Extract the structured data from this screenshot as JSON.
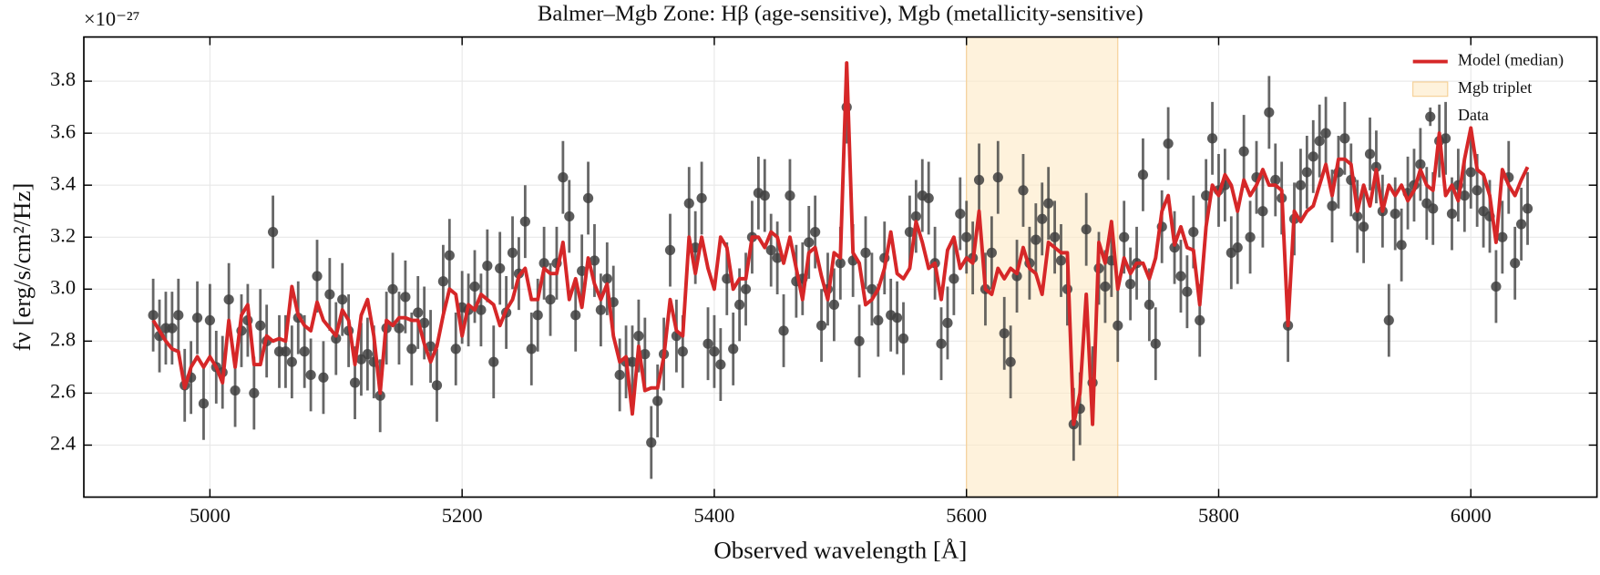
{
  "chart_data": {
    "type": "line",
    "title": "Balmer–Mgb Zone: Hβ (age-sensitive), Mgb (metallicity-sensitive)",
    "xlabel": "Observed wavelength [Å]",
    "ylabel": "fν [erg/s/cm²/Hz]",
    "y_offset_label": "×10⁻²⁷",
    "xlim": [
      4900,
      6100
    ],
    "ylim": [
      2.2,
      3.97
    ],
    "xticks": [
      5000,
      5200,
      5400,
      5600,
      5800,
      6000
    ],
    "yticks": [
      2.4,
      2.6,
      2.8,
      {
        "value": 3,
        "label": "3.0"
      },
      3.2,
      3.4,
      3.6,
      3.8
    ],
    "grid": true,
    "legend": "upper right",
    "spans": [
      {
        "name": "Mgb triplet",
        "x0": 5600,
        "x1": 5720,
        "color": "#fde9c4"
      }
    ],
    "x": [
      4955,
      4960,
      4965,
      4970,
      4975,
      4980,
      4985,
      4990,
      4995,
      5000,
      5005,
      5010,
      5015,
      5020,
      5025,
      5030,
      5035,
      5040,
      5045,
      5050,
      5055,
      5060,
      5065,
      5070,
      5075,
      5080,
      5085,
      5090,
      5095,
      5100,
      5105,
      5110,
      5115,
      5120,
      5125,
      5130,
      5135,
      5140,
      5145,
      5150,
      5155,
      5160,
      5165,
      5170,
      5175,
      5180,
      5185,
      5190,
      5195,
      5200,
      5205,
      5210,
      5215,
      5220,
      5225,
      5230,
      5235,
      5240,
      5245,
      5250,
      5255,
      5260,
      5265,
      5270,
      5275,
      5280,
      5285,
      5290,
      5295,
      5300,
      5305,
      5310,
      5315,
      5320,
      5325,
      5330,
      5335,
      5340,
      5345,
      5350,
      5355,
      5360,
      5365,
      5370,
      5375,
      5380,
      5385,
      5390,
      5395,
      5400,
      5405,
      5410,
      5415,
      5420,
      5425,
      5430,
      5435,
      5440,
      5445,
      5450,
      5455,
      5460,
      5465,
      5470,
      5475,
      5480,
      5485,
      5490,
      5495,
      5500,
      5505,
      5510,
      5515,
      5520,
      5525,
      5530,
      5535,
      5540,
      5545,
      5550,
      5555,
      5560,
      5565,
      5570,
      5575,
      5580,
      5585,
      5590,
      5595,
      5600,
      5605,
      5610,
      5615,
      5620,
      5625,
      5630,
      5635,
      5640,
      5645,
      5650,
      5655,
      5660,
      5665,
      5670,
      5675,
      5680,
      5685,
      5690,
      5695,
      5700,
      5705,
      5710,
      5715,
      5720,
      5725,
      5730,
      5735,
      5740,
      5745,
      5750,
      5755,
      5760,
      5765,
      5770,
      5775,
      5780,
      5785,
      5790,
      5795,
      5800,
      5805,
      5810,
      5815,
      5820,
      5825,
      5830,
      5835,
      5840,
      5845,
      5850,
      5855,
      5860,
      5865,
      5870,
      5875,
      5880,
      5885,
      5890,
      5895,
      5900,
      5905,
      5910,
      5915,
      5920,
      5925,
      5930,
      5935,
      5940,
      5945,
      5950,
      5955,
      5960,
      5965,
      5970,
      5975,
      5980,
      5985,
      5990,
      5995,
      6000,
      6005,
      6010,
      6015,
      6020,
      6025,
      6030,
      6035,
      6040,
      6045
    ],
    "series": [
      {
        "name": "Model (median)",
        "type": "line",
        "color": "#d62728",
        "values": [
          2.88,
          2.84,
          2.8,
          2.77,
          2.76,
          2.62,
          2.7,
          2.74,
          2.7,
          2.74,
          2.7,
          2.64,
          2.88,
          2.7,
          2.9,
          2.94,
          2.71,
          2.71,
          2.82,
          2.8,
          2.81,
          2.8,
          3.01,
          2.9,
          2.86,
          2.84,
          2.95,
          2.88,
          2.85,
          2.82,
          2.92,
          2.88,
          2.71,
          2.9,
          2.96,
          2.82,
          2.6,
          2.88,
          2.86,
          2.89,
          2.89,
          2.88,
          2.88,
          2.79,
          2.72,
          2.78,
          2.9,
          3.0,
          2.98,
          2.82,
          2.94,
          2.92,
          2.98,
          2.96,
          2.94,
          2.86,
          2.92,
          2.96,
          3.05,
          3.08,
          2.96,
          2.96,
          3.08,
          3.06,
          3.06,
          3.18,
          2.96,
          3.04,
          2.93,
          3.12,
          3.02,
          2.96,
          3.02,
          2.82,
          2.72,
          2.74,
          2.52,
          2.78,
          2.61,
          2.62,
          2.62,
          2.74,
          2.96,
          2.84,
          2.82,
          3.2,
          3.06,
          3.2,
          3.08,
          3.0,
          3.2,
          3.16,
          3.0,
          3.04,
          3.04,
          3.2,
          3.2,
          3.16,
          3.22,
          3.2,
          3.1,
          3.2,
          3.08,
          2.96,
          3.14,
          3.16,
          3.05,
          2.96,
          3.14,
          3.12,
          3.87,
          3.14,
          3.1,
          2.94,
          2.96,
          3.0,
          3.08,
          3.22,
          3.06,
          3.04,
          3.08,
          3.26,
          3.18,
          3.08,
          3.1,
          2.96,
          3.15,
          3.2,
          3.08,
          3.12,
          3.1,
          3.3,
          3.0,
          2.98,
          3.08,
          3.04,
          3.08,
          3.06,
          3.16,
          3.08,
          3.06,
          2.98,
          3.18,
          3.16,
          3.14,
          3.14,
          2.48,
          2.6,
          2.98,
          2.48,
          3.18,
          3.1,
          3.26,
          3.0,
          3.12,
          3.06,
          3.1,
          3.1,
          3.04,
          3.12,
          3.3,
          3.36,
          3.17,
          3.24,
          3.16,
          3.15,
          2.94,
          3.24,
          3.4,
          3.36,
          3.44,
          3.4,
          3.3,
          3.42,
          3.36,
          3.4,
          3.46,
          3.4,
          3.4,
          3.38,
          2.86,
          3.3,
          3.26,
          3.3,
          3.32,
          3.4,
          3.48,
          3.36,
          3.5,
          3.5,
          3.48,
          3.3,
          3.4,
          3.32,
          3.46,
          3.3,
          3.4,
          3.36,
          3.4,
          3.34,
          3.38,
          3.46,
          3.4,
          3.38,
          3.6,
          3.36,
          3.4,
          3.34,
          3.5,
          3.62,
          3.46,
          3.44,
          3.36,
          3.18,
          3.46,
          3.4,
          3.36,
          3.42,
          3.47
        ]
      },
      {
        "name": "Data",
        "type": "errorbar",
        "color": "#404040",
        "yerr": 0.14,
        "values": [
          2.9,
          2.82,
          2.85,
          2.85,
          2.9,
          2.63,
          2.66,
          2.89,
          2.56,
          2.88,
          2.7,
          2.68,
          2.96,
          2.61,
          2.84,
          2.88,
          2.6,
          2.86,
          2.8,
          3.22,
          2.76,
          2.76,
          2.72,
          2.89,
          2.76,
          2.67,
          3.05,
          2.66,
          2.98,
          2.81,
          2.96,
          2.84,
          2.64,
          2.73,
          2.75,
          2.72,
          2.59,
          2.85,
          3.0,
          2.85,
          2.97,
          2.77,
          2.91,
          2.87,
          2.78,
          2.63,
          3.03,
          3.13,
          2.77,
          2.93,
          2.92,
          3.01,
          2.92,
          3.09,
          2.72,
          3.08,
          2.91,
          3.14,
          3.06,
          3.26,
          2.77,
          2.9,
          3.1,
          2.96,
          3.1,
          3.43,
          3.28,
          2.9,
          3.07,
          3.35,
          3.11,
          2.92,
          3.04,
          2.95,
          2.67,
          2.72,
          2.72,
          2.82,
          2.75,
          2.41,
          2.57,
          2.75,
          3.15,
          2.82,
          2.76,
          3.33,
          3.16,
          3.35,
          2.79,
          2.76,
          2.71,
          3.04,
          2.77,
          2.94,
          3.0,
          3.2,
          3.37,
          3.36,
          3.15,
          3.12,
          2.84,
          3.36,
          3.03,
          3.04,
          3.18,
          3.22,
          2.86,
          3.0,
          2.94,
          3.1,
          3.7,
          3.11,
          2.8,
          3.14,
          3.0,
          2.88,
          3.12,
          2.9,
          2.89,
          2.81,
          3.22,
          3.28,
          3.36,
          3.35,
          3.1,
          2.79,
          2.87,
          3.04,
          3.29,
          3.2,
          3.12,
          3.42,
          3.0,
          3.14,
          3.43,
          2.83,
          2.72,
          3.05,
          3.38,
          3.1,
          3.19,
          3.27,
          3.33,
          3.2,
          3.11,
          3.0,
          2.48,
          2.54,
          3.23,
          2.64,
          3.08,
          3.01,
          3.11,
          2.86,
          3.2,
          3.02,
          3.1,
          3.44,
          2.94,
          2.79,
          3.24,
          3.56,
          3.16,
          3.05,
          2.99,
          3.22,
          2.88,
          3.36,
          3.58,
          3.38,
          3.4,
          3.14,
          3.16,
          3.53,
          3.2,
          3.43,
          3.3,
          3.68,
          3.42,
          3.35,
          2.86,
          3.27,
          3.4,
          3.45,
          3.51,
          3.57,
          3.6,
          3.32,
          3.45,
          3.58,
          3.42,
          3.28,
          3.24,
          3.52,
          3.47,
          3.3,
          2.88,
          3.29,
          3.17,
          3.37,
          3.4,
          3.48,
          3.33,
          3.31,
          3.57,
          3.58,
          3.29,
          3.4,
          3.36,
          3.45,
          3.38,
          3.3,
          3.28,
          3.01,
          3.2,
          3.43,
          3.1,
          3.25,
          3.31
        ]
      }
    ]
  }
}
